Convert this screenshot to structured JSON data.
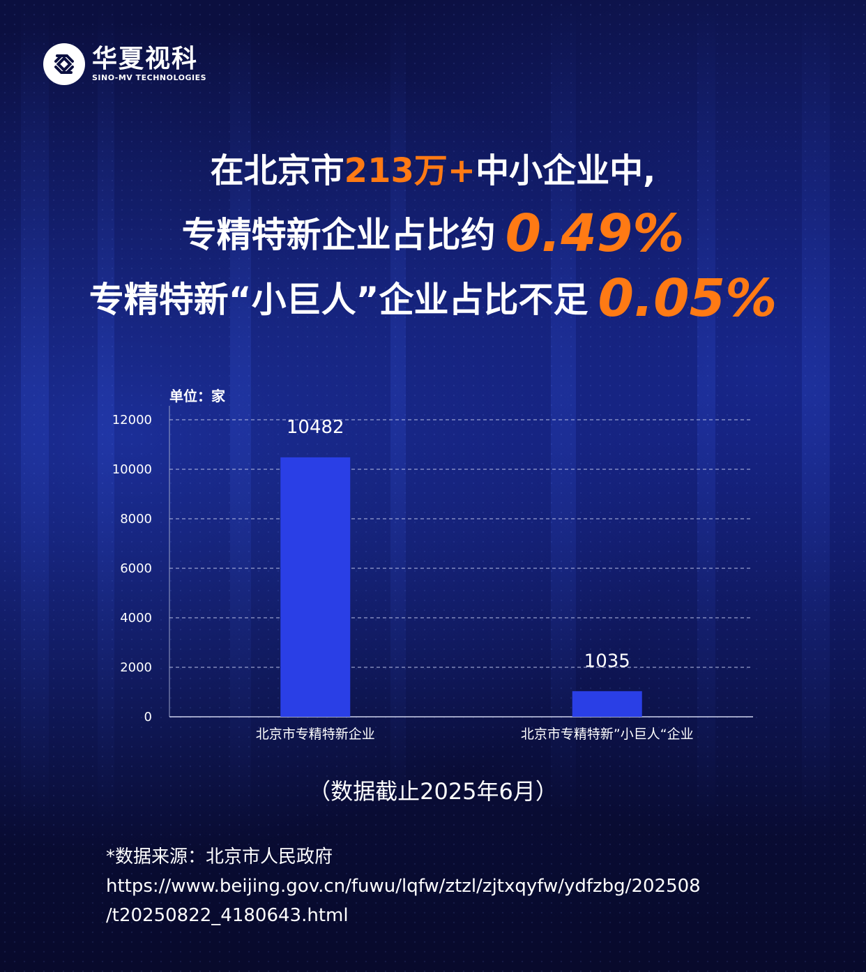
{
  "brand": {
    "name_cn": "华夏视科",
    "name_en": "SINO-MV TECHNOLOGIES"
  },
  "headline": {
    "line1_prefix": "在北京市",
    "line1_highlight": "213万+",
    "line1_suffix": "中小企业中,",
    "line2_text": "专精特新企业占比约",
    "line2_value": "0.49%",
    "line3_text": "专精特新“小巨人”企业占比不足",
    "line3_value": "0.05%"
  },
  "chart_data": {
    "type": "bar",
    "unit_label": "单位：家",
    "categories": [
      "北京市专精特新企业",
      "北京市专精特新”小巨人“企业"
    ],
    "values": [
      10482,
      1035
    ],
    "data_labels": [
      "10482",
      "1035"
    ],
    "y_ticks": [
      0,
      2000,
      4000,
      6000,
      8000,
      10000,
      12000
    ],
    "ylim": [
      0,
      12000
    ],
    "grid": true,
    "bar_color": "#2a3fe6"
  },
  "note": "（数据截止2025年6月）",
  "source": {
    "label": "*数据来源：北京市人民政府",
    "url_line1": "https://www.beijing.gov.cn/fuwu/lqfw/ztzl/zjtxqyfw/ydfzbg/202508",
    "url_line2": "/t20250822_4180643.html"
  },
  "colors": {
    "accent": "#ff7a14",
    "background": "#0a0d3a"
  }
}
